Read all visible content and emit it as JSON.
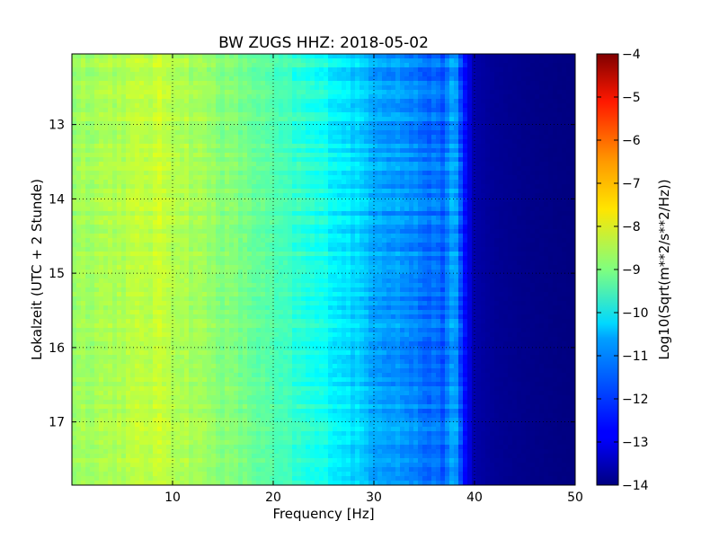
{
  "chart_data": {
    "type": "heatmap",
    "title": "BW ZUGS HHZ: 2018-05-02",
    "xlabel": "Frequency [Hz]",
    "ylabel": "Lokalzeit (UTC + 2 Stunde)",
    "xlim": [
      0,
      50
    ],
    "ylim": [
      12.05,
      17.85
    ],
    "y_inverted": true,
    "x_ticks": [
      10,
      20,
      30,
      40,
      50
    ],
    "y_ticks": [
      13,
      14,
      15,
      16,
      17
    ],
    "grid": true,
    "colormap": "jet",
    "colorbar": {
      "label": "Log10(Sqrt(m**2/s**2/Hz))",
      "range": [
        -14,
        -4
      ],
      "ticks": [
        -4,
        -5,
        -6,
        -7,
        -8,
        -9,
        -10,
        -11,
        -12,
        -13,
        -14
      ]
    },
    "frequency_profile": {
      "frequency_hz": [
        0,
        2,
        5,
        7,
        9,
        10,
        12,
        15,
        18,
        20,
        23,
        25,
        28,
        30,
        33,
        35,
        37,
        38,
        39,
        40,
        42,
        45,
        50
      ],
      "log10_amplitude": [
        -8.7,
        -8.6,
        -8.5,
        -8.4,
        -8.3,
        -8.4,
        -8.6,
        -8.9,
        -9.2,
        -9.5,
        -9.9,
        -10.1,
        -10.6,
        -11.0,
        -11.3,
        -11.6,
        -11.8,
        -11.0,
        -12.6,
        -13.6,
        -13.8,
        -13.9,
        -14.0
      ]
    }
  }
}
